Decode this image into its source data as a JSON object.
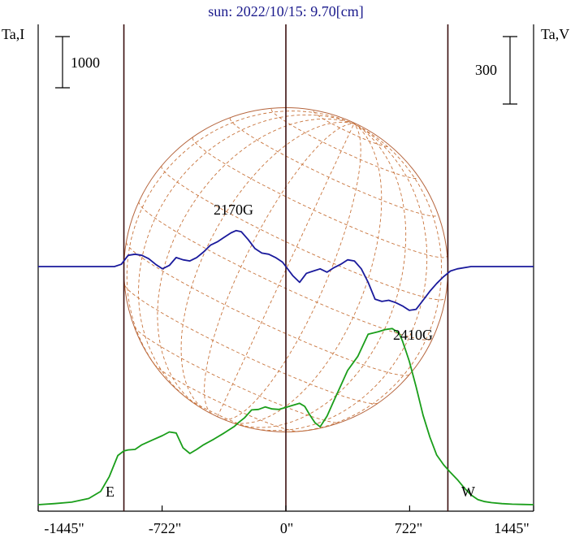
{
  "chart_data": {
    "type": "line",
    "title": "sun: 2022/10/15: 9.70[cm]",
    "left_axis_label": "Ta,I",
    "right_axis_label": "Ta,V",
    "left_scale_label": "1000",
    "right_scale_label": "300",
    "x_tick_labels": [
      "-1445\"",
      "-722\"",
      "0\"",
      "722\"",
      "1445\""
    ],
    "x_ticks": [
      -1445,
      -722,
      0,
      722,
      1445
    ],
    "xlim": [
      -1445,
      1445
    ],
    "limb_markers": {
      "E": "E",
      "W": "W"
    },
    "limb_positions": [
      -945,
      945
    ],
    "annotations": [
      {
        "text": "2170G",
        "x": -270
      },
      {
        "text": "2410G",
        "x": 770
      }
    ],
    "series": [
      {
        "name": "I",
        "color": "#1a9e1a",
        "x": [
          -1445,
          -1350,
          -1250,
          -1150,
          -1080,
          -1030,
          -980,
          -945,
          -920,
          -880,
          -840,
          -780,
          -720,
          -680,
          -640,
          -600,
          -560,
          -520,
          -480,
          -420,
          -360,
          -300,
          -270,
          -240,
          -200,
          -160,
          -120,
          -80,
          -40,
          0,
          40,
          80,
          110,
          140,
          170,
          200,
          240,
          280,
          320,
          360,
          420,
          480,
          540,
          580,
          620,
          660,
          680,
          700,
          720,
          760,
          800,
          840,
          880,
          920,
          960,
          1000,
          1040,
          1080,
          1120,
          1160,
          1200,
          1260,
          1320,
          1380,
          1445
        ],
        "y": [
          0,
          20,
          50,
          120,
          260,
          550,
          960,
          1050,
          1070,
          1080,
          1170,
          1260,
          1350,
          1420,
          1400,
          1110,
          1000,
          1080,
          1170,
          1280,
          1400,
          1530,
          1620,
          1700,
          1850,
          1860,
          1910,
          1870,
          1860,
          1900,
          1940,
          1980,
          1920,
          1750,
          1600,
          1520,
          1730,
          2030,
          2320,
          2620,
          2900,
          3330,
          3380,
          3420,
          3440,
          3350,
          3200,
          3000,
          2800,
          2300,
          1750,
          1320,
          970,
          780,
          630,
          490,
          330,
          190,
          100,
          60,
          40,
          20,
          10,
          5,
          0
        ]
      },
      {
        "name": "V",
        "color": "#1a1a9c",
        "x": [
          -1445,
          -1200,
          -1000,
          -960,
          -920,
          -880,
          -840,
          -800,
          -760,
          -720,
          -680,
          -640,
          -600,
          -560,
          -520,
          -480,
          -440,
          -400,
          -360,
          -320,
          -290,
          -260,
          -220,
          -180,
          -140,
          -100,
          -60,
          -20,
          0,
          40,
          80,
          120,
          160,
          200,
          240,
          280,
          320,
          360,
          400,
          440,
          480,
          520,
          560,
          600,
          640,
          680,
          720,
          760,
          800,
          840,
          880,
          920,
          960,
          1000,
          1080,
          1200,
          1445
        ],
        "y": [
          0,
          0,
          0,
          10,
          50,
          55,
          50,
          35,
          10,
          -10,
          5,
          40,
          30,
          25,
          40,
          65,
          95,
          110,
          130,
          150,
          160,
          155,
          120,
          80,
          60,
          55,
          40,
          20,
          0,
          -40,
          -70,
          -30,
          -20,
          -10,
          -25,
          -5,
          10,
          30,
          25,
          -10,
          -70,
          -145,
          -155,
          -150,
          -160,
          -175,
          -195,
          -190,
          -150,
          -110,
          -75,
          -45,
          -20,
          -10,
          0,
          0,
          0
        ]
      }
    ],
    "grid": false
  }
}
